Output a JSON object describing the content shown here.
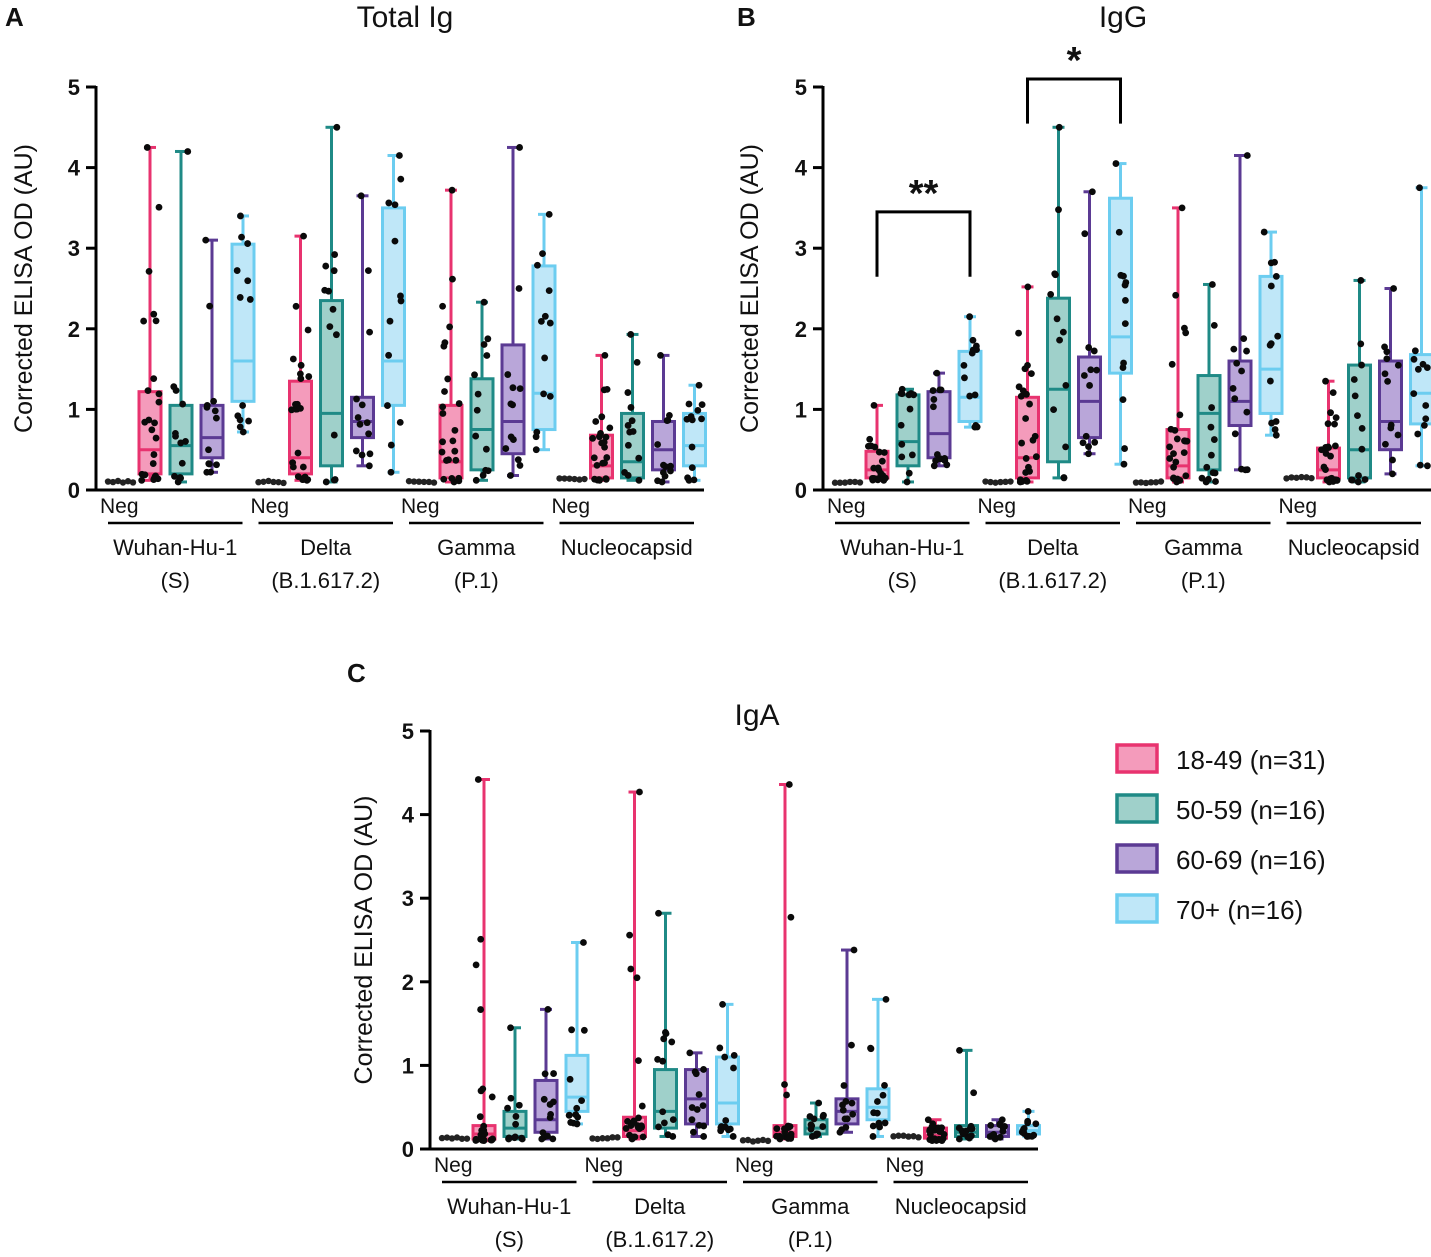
{
  "chart_data": {
    "type": "box",
    "groups": [
      {
        "name": "18-49 (n=31)",
        "stroke": "#e8336f",
        "fill": "#f49bbb"
      },
      {
        "name": "50-59 (n=16)",
        "stroke": "#1f8a86",
        "fill": "#9fd0ca"
      },
      {
        "name": "60-69 (n=16)",
        "stroke": "#5b3a93",
        "fill": "#b9a6d9"
      },
      {
        "name": "70+ (n=16)",
        "stroke": "#6ccdf0",
        "fill": "#bfe7f8"
      }
    ],
    "neg_color": "#555555",
    "neg_label": "Neg",
    "categories": [
      {
        "line1": "Wuhan-Hu-1",
        "line2": "(S)"
      },
      {
        "line1": "Delta",
        "line2": "(B.1.617.2)"
      },
      {
        "line1": "Gamma",
        "line2": "(P.1)"
      },
      {
        "line1": "Nucleocapsid",
        "line2": ""
      }
    ],
    "ylabel": "Corrected ELISA OD (AU)",
    "ylim": [
      0,
      5
    ],
    "yticks": [
      "0",
      "1",
      "2",
      "3",
      "4",
      "5"
    ],
    "panels": [
      {
        "letter": "A",
        "title": "Total Ig",
        "neg": [
          0.1,
          0.1,
          0.1,
          0.14
        ],
        "boxes": [
          [
            [
              0.12,
              0.2,
              0.5,
              1.22,
              4.25
            ],
            [
              0.1,
              0.2,
              0.55,
              1.05,
              4.2
            ],
            [
              0.22,
              0.4,
              0.65,
              1.05,
              3.1
            ],
            [
              0.72,
              1.1,
              1.6,
              3.05,
              3.4
            ]
          ],
          [
            [
              0.12,
              0.2,
              0.4,
              1.35,
              3.15
            ],
            [
              0.1,
              0.3,
              0.95,
              2.35,
              4.5
            ],
            [
              0.3,
              0.65,
              0.85,
              1.15,
              3.65
            ],
            [
              0.22,
              1.05,
              1.6,
              3.5,
              4.15
            ]
          ],
          [
            [
              0.1,
              0.15,
              0.35,
              1.05,
              3.72
            ],
            [
              0.12,
              0.25,
              0.75,
              1.38,
              2.33
            ],
            [
              0.18,
              0.45,
              0.85,
              1.8,
              4.25
            ],
            [
              0.5,
              0.75,
              1.2,
              2.78,
              3.42
            ]
          ],
          [
            [
              0.12,
              0.15,
              0.3,
              0.68,
              1.67
            ],
            [
              0.12,
              0.15,
              0.35,
              0.95,
              1.93
            ],
            [
              0.1,
              0.25,
              0.5,
              0.85,
              1.67
            ],
            [
              0.12,
              0.3,
              0.55,
              0.95,
              1.3
            ]
          ]
        ]
      },
      {
        "letter": "B",
        "title": "IgG",
        "neg": [
          0.1,
          0.1,
          0.1,
          0.15
        ],
        "boxes": [
          [
            [
              0.12,
              0.15,
              0.25,
              0.48,
              1.05
            ],
            [
              0.1,
              0.3,
              0.6,
              1.18,
              1.25
            ],
            [
              0.3,
              0.4,
              0.7,
              1.22,
              1.45
            ],
            [
              0.78,
              0.85,
              1.15,
              1.72,
              2.15
            ]
          ],
          [
            [
              0.1,
              0.15,
              0.4,
              1.15,
              2.52
            ],
            [
              0.15,
              0.35,
              1.25,
              2.38,
              4.5
            ],
            [
              0.45,
              0.65,
              1.1,
              1.65,
              3.7
            ],
            [
              0.32,
              1.45,
              1.9,
              3.62,
              4.05
            ]
          ],
          [
            [
              0.1,
              0.15,
              0.3,
              0.75,
              3.5
            ],
            [
              0.1,
              0.25,
              0.95,
              1.42,
              2.55
            ],
            [
              0.25,
              0.8,
              1.1,
              1.6,
              4.15
            ],
            [
              0.68,
              0.95,
              1.5,
              2.65,
              3.2
            ]
          ],
          [
            [
              0.1,
              0.15,
              0.25,
              0.52,
              1.35
            ],
            [
              0.1,
              0.15,
              0.5,
              1.55,
              2.6
            ],
            [
              0.2,
              0.5,
              0.85,
              1.6,
              2.5
            ],
            [
              0.3,
              0.82,
              1.2,
              1.68,
              3.75
            ]
          ]
        ],
        "annotations": [
          {
            "label": "**",
            "category": 0,
            "from_group": 0,
            "to_group": 3,
            "y": 3.45
          },
          {
            "label": "*",
            "category": 1,
            "from_group": 0,
            "to_group": 3,
            "y": 5.1
          }
        ]
      },
      {
        "letter": "C",
        "title": "IgA",
        "neg": [
          0.13,
          0.13,
          0.1,
          0.15
        ],
        "boxes": [
          [
            [
              0.1,
              0.12,
              0.18,
              0.28,
              4.42
            ],
            [
              0.12,
              0.15,
              0.25,
              0.45,
              1.45
            ],
            [
              0.12,
              0.2,
              0.35,
              0.82,
              1.67
            ],
            [
              0.3,
              0.45,
              0.62,
              1.12,
              2.47
            ]
          ],
          [
            [
              0.12,
              0.15,
              0.22,
              0.38,
              4.27
            ],
            [
              0.15,
              0.25,
              0.45,
              0.95,
              2.82
            ],
            [
              0.15,
              0.3,
              0.6,
              0.95,
              1.15
            ],
            [
              0.15,
              0.3,
              0.55,
              1.1,
              1.73
            ]
          ],
          [
            [
              0.12,
              0.15,
              0.2,
              0.28,
              4.36
            ],
            [
              0.15,
              0.18,
              0.25,
              0.35,
              0.55
            ],
            [
              0.2,
              0.3,
              0.45,
              0.6,
              2.38
            ],
            [
              0.15,
              0.35,
              0.5,
              0.72,
              1.79
            ]
          ],
          [
            [
              0.1,
              0.13,
              0.16,
              0.25,
              0.35
            ],
            [
              0.12,
              0.15,
              0.2,
              0.28,
              1.18
            ],
            [
              0.12,
              0.15,
              0.2,
              0.28,
              0.35
            ],
            [
              0.15,
              0.18,
              0.22,
              0.28,
              0.45
            ]
          ]
        ]
      }
    ],
    "legend_position": "right of panel C"
  }
}
